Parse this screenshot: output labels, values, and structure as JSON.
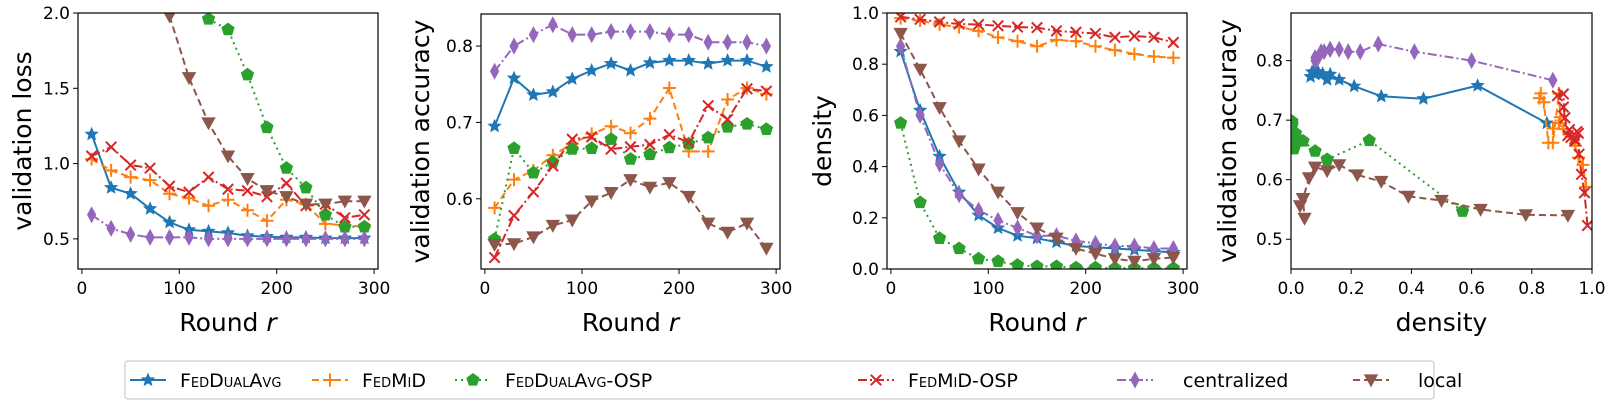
{
  "chart_data": [
    {
      "type": "line",
      "xlabel": "Round r",
      "ylabel": "validation loss",
      "xlim": [
        -4,
        304
      ],
      "ylim": [
        0.3,
        2.0
      ],
      "xticks": [
        0,
        100,
        200,
        300
      ],
      "yticks": [
        0.5,
        1.0,
        1.5,
        2.0
      ],
      "ytick_labels": [
        "0.5",
        "1.0",
        "1.5",
        "2.0"
      ],
      "xtick_labels": [
        "0",
        "100",
        "200",
        "300"
      ],
      "x": [
        10,
        30,
        50,
        70,
        90,
        110,
        130,
        150,
        170,
        190,
        210,
        230,
        250,
        270,
        290
      ],
      "series": [
        {
          "name": "FedDualAvg",
          "values": [
            1.195,
            0.84,
            0.8,
            0.7,
            0.61,
            0.56,
            0.55,
            0.54,
            0.52,
            0.515,
            0.51,
            0.51,
            0.505,
            0.505,
            0.505
          ]
        },
        {
          "name": "FedMiD",
          "values": [
            1.03,
            0.955,
            0.91,
            0.89,
            0.8,
            0.77,
            0.72,
            0.76,
            0.69,
            0.62,
            0.76,
            0.73,
            0.6,
            0.59,
            0.58
          ]
        },
        {
          "name": "FedDualAvg-OSP",
          "values": [
            null,
            null,
            null,
            null,
            null,
            null,
            1.96,
            1.89,
            1.59,
            1.24,
            0.97,
            0.84,
            0.66,
            0.58,
            0.58
          ]
        },
        {
          "name": "FedMiD-OSP",
          "values": [
            1.05,
            1.11,
            0.99,
            0.97,
            0.85,
            0.81,
            0.91,
            0.83,
            0.82,
            0.78,
            0.87,
            0.72,
            0.73,
            0.64,
            0.66
          ]
        },
        {
          "name": "centralized",
          "values": [
            0.66,
            0.57,
            0.53,
            0.51,
            0.51,
            0.51,
            0.5,
            0.5,
            0.5,
            0.5,
            0.5,
            0.5,
            0.5,
            0.5,
            0.5
          ]
        },
        {
          "name": "local",
          "values": [
            null,
            null,
            null,
            null,
            1.98,
            1.57,
            1.27,
            1.05,
            0.9,
            0.82,
            0.78,
            0.73,
            0.73,
            0.75,
            0.75
          ]
        }
      ]
    },
    {
      "type": "line",
      "xlabel": "Round r",
      "ylabel": "validation accuracy",
      "xlim": [
        -4,
        304
      ],
      "ylim": [
        0.508,
        0.842
      ],
      "xticks": [
        0,
        100,
        200,
        300
      ],
      "xtick_labels": [
        "0",
        "100",
        "200",
        "300"
      ],
      "yticks": [
        0.6,
        0.7,
        0.8
      ],
      "ytick_labels": [
        "0.6",
        "0.7",
        "0.8"
      ],
      "x": [
        10,
        30,
        50,
        70,
        90,
        110,
        130,
        150,
        170,
        190,
        210,
        230,
        250,
        270,
        290
      ],
      "series": [
        {
          "name": "FedDualAvg",
          "values": [
            0.695,
            0.758,
            0.736,
            0.74,
            0.757,
            0.768,
            0.777,
            0.768,
            0.778,
            0.781,
            0.781,
            0.777,
            0.781,
            0.781,
            0.773
          ]
        },
        {
          "name": "FedMiD",
          "values": [
            0.588,
            0.625,
            0.637,
            0.657,
            0.672,
            0.685,
            0.695,
            0.686,
            0.705,
            0.745,
            0.662,
            0.662,
            0.73,
            0.745,
            0.737
          ]
        },
        {
          "name": "FedDualAvg-OSP",
          "values": [
            0.547,
            0.666,
            0.634,
            0.648,
            0.665,
            0.666,
            0.678,
            0.652,
            0.658,
            0.667,
            0.672,
            0.68,
            0.694,
            0.698,
            0.691
          ]
        },
        {
          "name": "FedMiD-OSP",
          "values": [
            0.523,
            0.578,
            0.609,
            0.643,
            0.678,
            0.681,
            0.665,
            0.668,
            0.671,
            0.684,
            0.674,
            0.722,
            0.704,
            0.744,
            0.741
          ]
        },
        {
          "name": "centralized",
          "values": [
            0.767,
            0.8,
            0.815,
            0.828,
            0.815,
            0.815,
            0.819,
            0.819,
            0.819,
            0.815,
            0.815,
            0.805,
            0.805,
            0.805,
            0.8
          ]
        },
        {
          "name": "local",
          "values": [
            0.54,
            0.541,
            0.55,
            0.565,
            0.572,
            0.597,
            0.608,
            0.625,
            0.615,
            0.621,
            0.603,
            0.568,
            0.556,
            0.568,
            0.535
          ]
        }
      ]
    },
    {
      "type": "line",
      "xlabel": "Round r",
      "ylabel": "density",
      "xlim": [
        -4,
        304
      ],
      "ylim": [
        0,
        1
      ],
      "xticks": [
        0,
        100,
        200,
        300
      ],
      "xtick_labels": [
        "0",
        "100",
        "200",
        "300"
      ],
      "yticks": [
        0,
        0.2,
        0.4,
        0.6,
        0.8,
        1.0
      ],
      "ytick_labels": [
        "0.0",
        "0.2",
        "0.4",
        "0.6",
        "0.8",
        "1.0"
      ],
      "x": [
        10,
        30,
        50,
        70,
        90,
        110,
        130,
        150,
        170,
        190,
        210,
        230,
        250,
        270,
        290
      ],
      "series": [
        {
          "name": "FedDualAvg",
          "values": [
            0.85,
            0.62,
            0.44,
            0.3,
            0.21,
            0.16,
            0.13,
            0.12,
            0.105,
            0.09,
            0.085,
            0.08,
            0.075,
            0.07,
            0.065
          ]
        },
        {
          "name": "FedMiD",
          "values": [
            0.98,
            0.97,
            0.955,
            0.945,
            0.93,
            0.905,
            0.89,
            0.87,
            0.895,
            0.89,
            0.87,
            0.855,
            0.84,
            0.83,
            0.825
          ]
        },
        {
          "name": "FedDualAvg-OSP",
          "values": [
            0.57,
            0.26,
            0.12,
            0.08,
            0.04,
            0.03,
            0.015,
            0.01,
            0.01,
            0.005,
            0.005,
            0.003,
            0.003,
            0.003,
            0.003
          ]
        },
        {
          "name": "FedMiD-OSP",
          "values": [
            0.985,
            0.975,
            0.965,
            0.957,
            0.955,
            0.95,
            0.945,
            0.943,
            0.93,
            0.925,
            0.92,
            0.905,
            0.91,
            0.905,
            0.885
          ]
        },
        {
          "name": "centralized",
          "values": [
            0.87,
            0.6,
            0.41,
            0.29,
            0.23,
            0.19,
            0.16,
            0.13,
            0.13,
            0.11,
            0.1,
            0.09,
            0.09,
            0.08,
            0.08
          ]
        },
        {
          "name": "local",
          "values": [
            0.92,
            0.78,
            0.63,
            0.5,
            0.39,
            0.3,
            0.22,
            0.16,
            0.12,
            0.08,
            0.06,
            0.04,
            0.03,
            0.04,
            0.045
          ]
        }
      ]
    },
    {
      "type": "line",
      "xlabel": "density",
      "ylabel": "validation accuracy",
      "xlim": [
        0,
        1
      ],
      "ylim": [
        0.45,
        0.88
      ],
      "xticks": [
        0,
        0.2,
        0.4,
        0.6,
        0.8,
        1.0
      ],
      "xtick_labels": [
        "0.0",
        "0.2",
        "0.4",
        "0.6",
        "0.8",
        "1.0"
      ],
      "yticks": [
        0.5,
        0.6,
        0.7,
        0.8
      ],
      "ytick_labels": [
        "0.5",
        "0.6",
        "0.7",
        "0.8"
      ],
      "series": [
        {
          "name": "FedDualAvg",
          "x": [
            0.85,
            0.62,
            0.44,
            0.3,
            0.21,
            0.16,
            0.13,
            0.12,
            0.105,
            0.09,
            0.085,
            0.08,
            0.075,
            0.07,
            0.065
          ],
          "values": [
            0.695,
            0.758,
            0.736,
            0.74,
            0.757,
            0.768,
            0.777,
            0.768,
            0.778,
            0.781,
            0.781,
            0.777,
            0.781,
            0.781,
            0.773
          ]
        },
        {
          "name": "FedMiD",
          "x": [
            0.98,
            0.97,
            0.955,
            0.945,
            0.93,
            0.905,
            0.89,
            0.87,
            0.895,
            0.89,
            0.87,
            0.855,
            0.84,
            0.83,
            0.825
          ],
          "values": [
            0.588,
            0.625,
            0.637,
            0.657,
            0.672,
            0.685,
            0.695,
            0.686,
            0.705,
            0.745,
            0.662,
            0.662,
            0.73,
            0.745,
            0.737
          ]
        },
        {
          "name": "FedDualAvg-OSP",
          "x": [
            0.57,
            0.26,
            0.12,
            0.08,
            0.04,
            0.03,
            0.015,
            0.01,
            0.01,
            0.005,
            0.005,
            0.003,
            0.003,
            0.003,
            0.003
          ],
          "values": [
            0.547,
            0.666,
            0.634,
            0.648,
            0.665,
            0.666,
            0.678,
            0.652,
            0.658,
            0.667,
            0.672,
            0.68,
            0.694,
            0.698,
            0.691
          ]
        },
        {
          "name": "FedMiD-OSP",
          "x": [
            0.985,
            0.975,
            0.965,
            0.957,
            0.955,
            0.95,
            0.945,
            0.943,
            0.93,
            0.925,
            0.92,
            0.905,
            0.91,
            0.905,
            0.885
          ],
          "values": [
            0.523,
            0.578,
            0.609,
            0.643,
            0.678,
            0.681,
            0.665,
            0.668,
            0.671,
            0.684,
            0.674,
            0.722,
            0.704,
            0.744,
            0.741
          ]
        },
        {
          "name": "centralized",
          "x": [
            0.87,
            0.6,
            0.41,
            0.29,
            0.23,
            0.19,
            0.16,
            0.13,
            0.13,
            0.11,
            0.1,
            0.09,
            0.09,
            0.08,
            0.08
          ],
          "values": [
            0.767,
            0.8,
            0.815,
            0.828,
            0.815,
            0.815,
            0.819,
            0.819,
            0.819,
            0.815,
            0.815,
            0.805,
            0.805,
            0.805,
            0.8
          ]
        },
        {
          "name": "local",
          "x": [
            0.92,
            0.78,
            0.63,
            0.5,
            0.39,
            0.3,
            0.22,
            0.16,
            0.12,
            0.08,
            0.06,
            0.04,
            0.03,
            0.04,
            0.045
          ],
          "values": [
            0.54,
            0.541,
            0.55,
            0.565,
            0.572,
            0.597,
            0.608,
            0.625,
            0.615,
            0.621,
            0.603,
            0.568,
            0.556,
            0.568,
            0.535
          ]
        }
      ]
    }
  ],
  "legend": {
    "placement": "bottom-center",
    "entries": [
      {
        "label": "FedDualAvg",
        "color": "#1f77b4",
        "marker": "star",
        "linestyle": "solid",
        "smallcaps": true
      },
      {
        "label": "FedMiD",
        "color": "#ff7f0e",
        "marker": "plus",
        "linestyle": "dashed",
        "smallcaps": true
      },
      {
        "label": "FedDualAvg-OSP",
        "color": "#2ca02c",
        "marker": "pentagon",
        "linestyle": "dotted",
        "smallcaps": true
      },
      {
        "label": "FedMiD-OSP",
        "color": "#d62728",
        "marker": "x",
        "linestyle": "dashdot",
        "smallcaps": true
      },
      {
        "label": "centralized",
        "color": "#9467bd",
        "marker": "thin-diamond",
        "linestyle": "dashdot",
        "smallcaps": false
      },
      {
        "label": "local",
        "color": "#8c564b",
        "marker": "triangle-down",
        "linestyle": "dashed",
        "smallcaps": false
      }
    ]
  }
}
